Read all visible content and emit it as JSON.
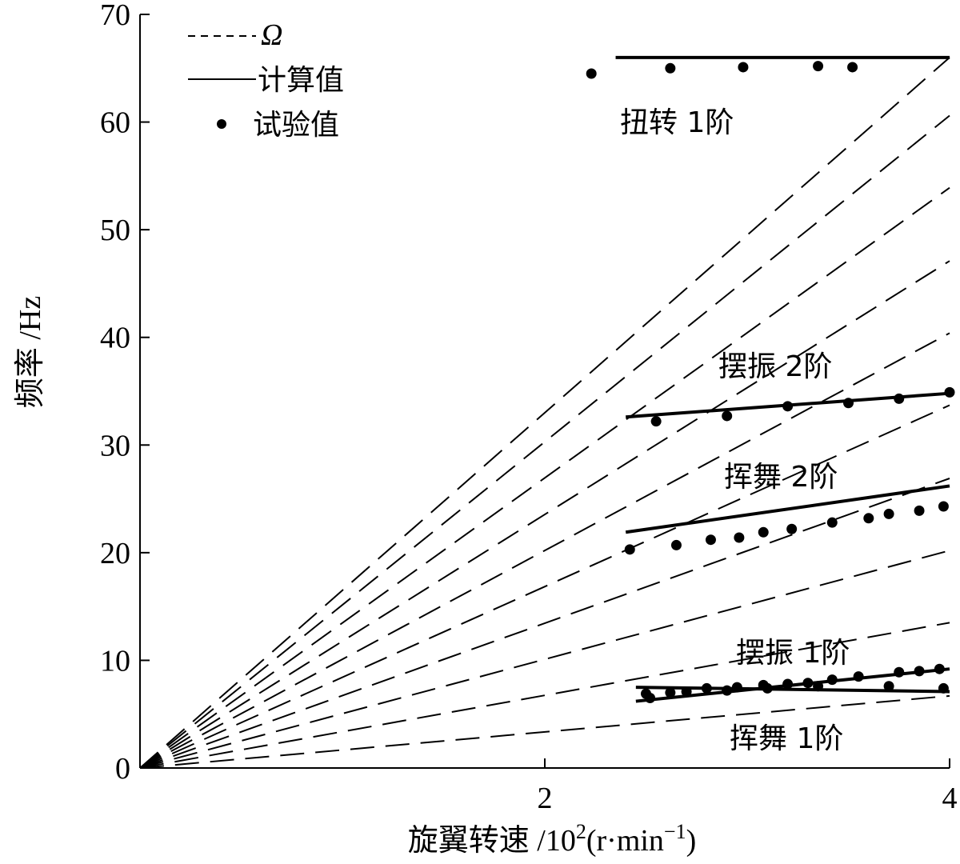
{
  "chart_data": {
    "type": "line",
    "title": "",
    "xlabel": "旋翼转速 /10",
    "xlabel_exponent": "2",
    "xlabel_unit": "(r·min",
    "xlabel_unit_exponent": "−1",
    "xlabel_unit_close": ")",
    "ylabel": "频率 /Hz",
    "xlim": [
      0,
      4
    ],
    "ylim": [
      0,
      70
    ],
    "x_ticks": [
      {
        "value": 2,
        "label": "2"
      },
      {
        "value": 4,
        "label": "4"
      }
    ],
    "y_ticks": [
      {
        "value": 0,
        "label": "0"
      },
      {
        "value": 10,
        "label": "10"
      },
      {
        "value": 20,
        "label": "20"
      },
      {
        "value": 30,
        "label": "30"
      },
      {
        "value": 40,
        "label": "40"
      },
      {
        "value": 50,
        "label": "50"
      },
      {
        "value": 60,
        "label": "60"
      },
      {
        "value": 70,
        "label": "70"
      }
    ],
    "legend": {
      "placement": "top-left",
      "entries": [
        {
          "label": "Ω",
          "style": "dashed"
        },
        {
          "label": "计算值",
          "style": "solid"
        },
        {
          "label": "试验值",
          "style": "dot"
        }
      ]
    },
    "omega_lines": {
      "name": "Ω",
      "style": "dashed",
      "end_x": 4,
      "end_values": [
        6.7,
        13.5,
        20.2,
        26.9,
        33.7,
        40.4,
        47.1,
        53.9,
        60.6,
        66.0
      ]
    },
    "series": [
      {
        "label": "扭转 1阶",
        "calculated": [
          [
            2.35,
            66.0
          ],
          [
            4.0,
            66.0
          ]
        ],
        "measured": [
          [
            2.23,
            64.5
          ],
          [
            2.62,
            65.0
          ],
          [
            2.98,
            65.1
          ],
          [
            3.35,
            65.2
          ],
          [
            3.52,
            65.1
          ]
        ]
      },
      {
        "label": "摆振 2阶",
        "calculated": [
          [
            2.4,
            32.6
          ],
          [
            4.0,
            34.8
          ]
        ],
        "measured": [
          [
            2.55,
            32.2
          ],
          [
            2.9,
            32.7
          ],
          [
            3.2,
            33.6
          ],
          [
            3.5,
            33.9
          ],
          [
            3.75,
            34.3
          ],
          [
            4.0,
            34.9
          ]
        ]
      },
      {
        "label": "挥舞 2阶",
        "calculated": [
          [
            2.4,
            21.9
          ],
          [
            4.0,
            26.2
          ]
        ],
        "measured": [
          [
            2.42,
            20.3
          ],
          [
            2.65,
            20.7
          ],
          [
            2.82,
            21.2
          ],
          [
            2.96,
            21.4
          ],
          [
            3.08,
            21.9
          ],
          [
            3.22,
            22.2
          ],
          [
            3.42,
            22.8
          ],
          [
            3.6,
            23.2
          ],
          [
            3.7,
            23.6
          ],
          [
            3.85,
            23.9
          ],
          [
            3.97,
            24.3
          ]
        ]
      },
      {
        "label": "摆振 1阶",
        "calculated": [
          [
            2.45,
            6.2
          ],
          [
            4.0,
            9.2
          ]
        ],
        "measured": [
          [
            2.52,
            6.5
          ],
          [
            2.62,
            7.0
          ],
          [
            2.8,
            7.4
          ],
          [
            2.95,
            7.5
          ],
          [
            3.08,
            7.7
          ],
          [
            3.2,
            7.8
          ],
          [
            3.3,
            7.9
          ],
          [
            3.42,
            8.2
          ],
          [
            3.55,
            8.5
          ],
          [
            3.75,
            8.9
          ],
          [
            3.85,
            9.0
          ],
          [
            3.95,
            9.2
          ]
        ]
      },
      {
        "label": "挥舞 1阶",
        "calculated": [
          [
            2.45,
            7.5
          ],
          [
            4.0,
            7.1
          ]
        ],
        "measured": [
          [
            2.5,
            6.9
          ],
          [
            2.7,
            7.1
          ],
          [
            2.9,
            7.2
          ],
          [
            3.1,
            7.4
          ],
          [
            3.35,
            7.6
          ],
          [
            3.7,
            7.6
          ],
          [
            3.97,
            7.4
          ]
        ]
      }
    ]
  }
}
